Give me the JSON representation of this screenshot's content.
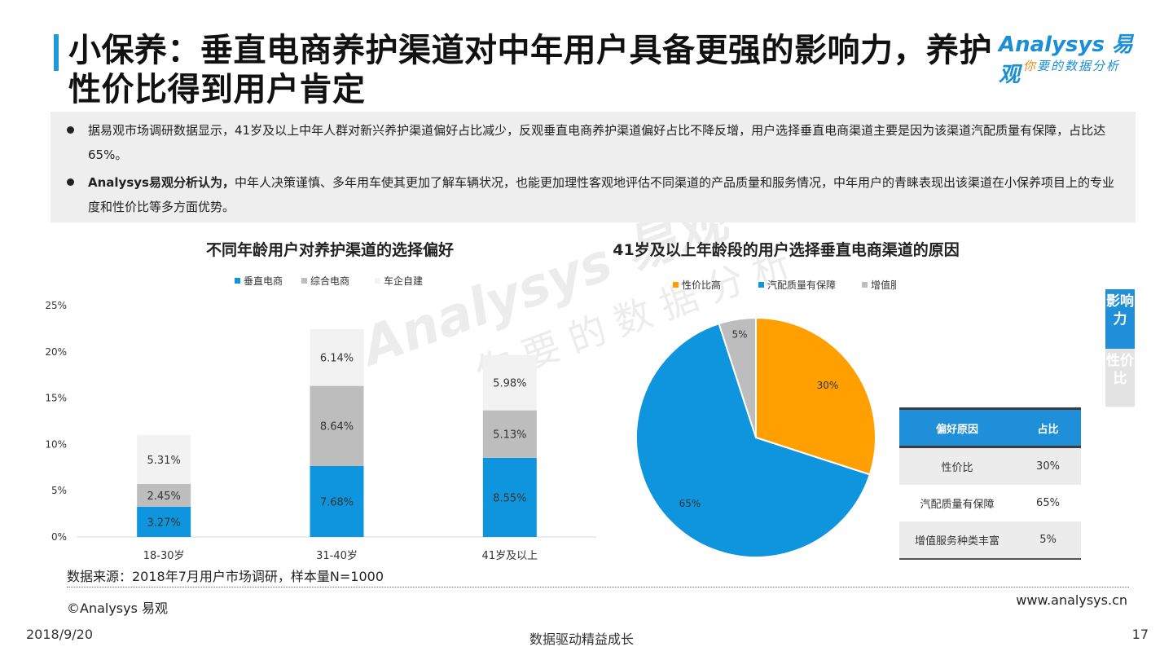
{
  "header": {
    "title": "小保养：垂直电商养护渠道对中年用户具备更强的影响力，养护性价比得到用户肯定",
    "logo_main": "Analysys 易观",
    "logo_sub_highlight": "你",
    "logo_sub_rest": "要的数据分析"
  },
  "summary": {
    "bullet1": "据易观市场调研数据显示，41岁及以上中年人群对新兴养护渠道偏好占比减少，反观垂直电商养护渠道偏好占比不降反增，用户选择垂直电商渠道主要是因为该渠道汽配质量有保障，占比达65%。",
    "bullet2_bold": "Analysys易观分析认为，",
    "bullet2_rest": "中年人决策谨慎、多年用车使其更加了解车辆状况，也能更加理性客观地评估不同渠道的产品质量和服务情况，中年用户的青睐表现出该渠道在小保养项目上的专业度和性价比等多方面优势。"
  },
  "side_tabs": {
    "active": "影响力",
    "inactive": "性价比"
  },
  "watermark": {
    "main": "Analysys 易观",
    "sub": "你要的数据分析"
  },
  "colors": {
    "blue": "#0f95dd",
    "gray": "#bdbdbd",
    "light": "#f2f2f2",
    "orange": "#ff9f00",
    "accent": "#1f8fd9"
  },
  "chart_data": [
    {
      "type": "bar",
      "stacked": true,
      "title": "不同年龄用户对养护渠道的选择偏好",
      "categories": [
        "18-30岁",
        "31-40岁",
        "41岁及以上"
      ],
      "series": [
        {
          "name": "垂直电商",
          "values": [
            3.27,
            7.68,
            8.55
          ],
          "labels": [
            "3.27%",
            "7.68%",
            "8.55%"
          ]
        },
        {
          "name": "综合电商",
          "values": [
            2.45,
            8.64,
            5.13
          ],
          "labels": [
            "2.45%",
            "8.64%",
            "5.13%"
          ]
        },
        {
          "name": "车企自建",
          "values": [
            5.31,
            6.14,
            5.98
          ],
          "labels": [
            "5.31%",
            "6.14%",
            "5.98%"
          ]
        }
      ],
      "y_ticks": [
        "0%",
        "5%",
        "10%",
        "15%",
        "20%",
        "25%"
      ],
      "ylim": [
        0,
        25
      ],
      "xlabel": "",
      "ylabel": "",
      "legend": "top",
      "grid": false
    },
    {
      "type": "pie",
      "title": "41岁及以上年龄段的用户选择垂直电商渠道的原因",
      "slices": [
        {
          "name": "性价比高",
          "value": 30,
          "label": "30%"
        },
        {
          "name": "汽配质量有保障",
          "value": 65,
          "label": "65%"
        },
        {
          "name": "增值服务种类丰富",
          "value": 5,
          "label": "5%"
        }
      ],
      "legend": "top"
    }
  ],
  "reason_table": {
    "headers": [
      "偏好原因",
      "占比"
    ],
    "rows": [
      [
        "性价比",
        "30%"
      ],
      [
        "汽配质量有保障",
        "65%"
      ],
      [
        "增值服务种类丰富",
        "5%"
      ]
    ]
  },
  "footer": {
    "source": "数据来源：2018年7月用户市场调研，样本量N=1000",
    "copyright": "©Analysys 易观",
    "website": "www.analysys.cn",
    "date": "2018/9/20",
    "slogan": "数据驱动精益成长",
    "page": "17"
  }
}
